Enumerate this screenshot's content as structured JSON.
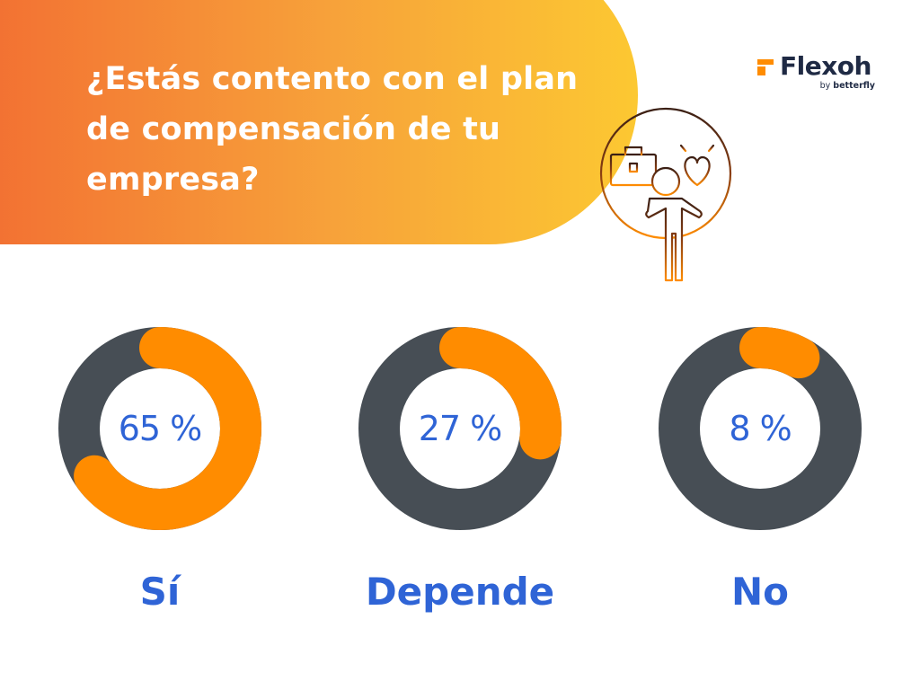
{
  "header": {
    "question": "¿Estás contento con el plan de compensación de tu empresa?"
  },
  "logo": {
    "name": "Flexoh",
    "by": "by ",
    "partner": "betterfly"
  },
  "colors": {
    "accent": "#ff8c00",
    "track": "#474e55",
    "label": "#2f64d6",
    "banner_start": "#f26d32",
    "banner_end": "#fcc832"
  },
  "icons": [
    "briefcase-icon",
    "heart-icon",
    "person-icon"
  ],
  "chart_data": {
    "type": "pie",
    "style": "donut",
    "unit": "%",
    "categories": [
      "Sí",
      "Depende",
      "No"
    ],
    "values": [
      65,
      27,
      8
    ],
    "value_labels": [
      "65 %",
      "27 %",
      "8 %"
    ]
  }
}
